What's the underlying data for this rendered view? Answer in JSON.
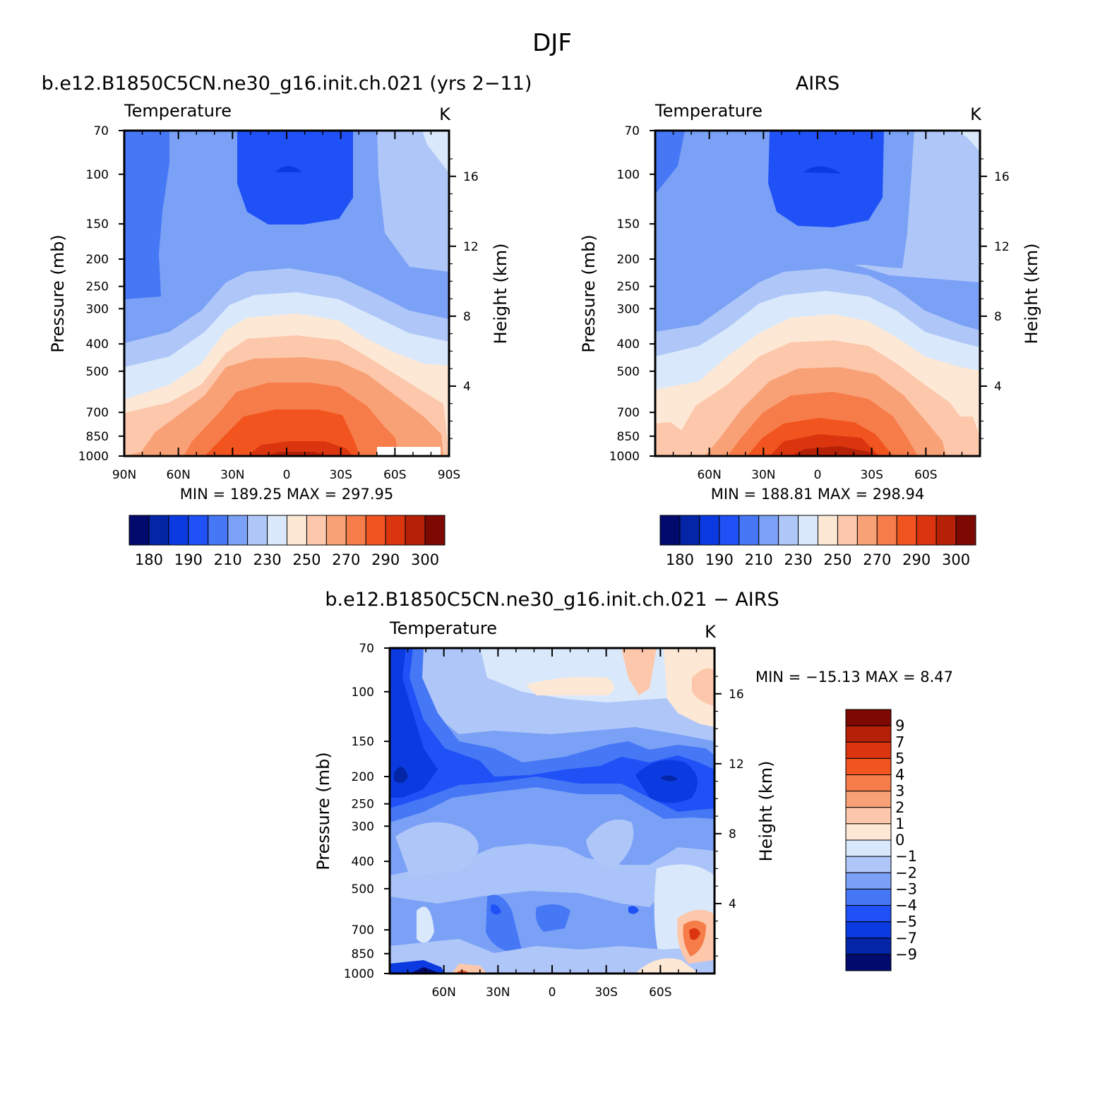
{
  "figure": {
    "title": "DJF"
  },
  "chart_data": [
    {
      "type": "heatmap",
      "title": "b.e12.B1850C5CN.ne30_g16.init.ch.021 (yrs 2-11)",
      "subtitle_left": "Temperature",
      "units": "K",
      "xlabel": "",
      "ylabel": "Pressure (mb)",
      "ylabel_right": "Height (km)",
      "x_ticks": [
        "90N",
        "60N",
        "30N",
        "0",
        "30S",
        "60S",
        "90S"
      ],
      "y_ticks": [
        "70",
        "100",
        "150",
        "200",
        "250",
        "300",
        "400",
        "500",
        "700",
        "850",
        "1000"
      ],
      "right_ticks": [
        "16",
        "12",
        "8",
        "4"
      ],
      "ylim": [
        1000,
        70
      ],
      "y_scale": "log",
      "stats": {
        "min_label": "MIN",
        "min": "189.25",
        "max_label": "MAX",
        "max": "297.95"
      },
      "colorbar": {
        "orientation": "horizontal",
        "labels": [
          "180",
          "190",
          "210",
          "230",
          "250",
          "270",
          "290",
          "300"
        ],
        "colors": [
          "#030a6e",
          "#0425a5",
          "#0b3be0",
          "#1f51f7",
          "#4677f5",
          "#7aa1f6",
          "#afc6f8",
          "#d9e9fb",
          "#fde8d5",
          "#fcc7aa",
          "#f9a176",
          "#f67c49",
          "#f2541f",
          "#db3510",
          "#b52106",
          "#7d0903"
        ]
      }
    },
    {
      "type": "heatmap",
      "title": "AIRS",
      "subtitle_left": "Temperature",
      "units": "K",
      "xlabel": "",
      "ylabel": "Pressure (mb)",
      "ylabel_right": "Height (km)",
      "x_ticks": [
        "60N",
        "30N",
        "0",
        "30S",
        "60S"
      ],
      "y_ticks": [
        "70",
        "100",
        "150",
        "200",
        "250",
        "300",
        "400",
        "500",
        "700",
        "850",
        "1000"
      ],
      "right_ticks": [
        "16",
        "12",
        "8",
        "4"
      ],
      "ylim": [
        1000,
        70
      ],
      "y_scale": "log",
      "stats": {
        "min_label": "MIN",
        "min": "188.81",
        "max_label": "MAX",
        "max": "298.94"
      },
      "colorbar": {
        "orientation": "horizontal",
        "labels": [
          "180",
          "190",
          "210",
          "230",
          "250",
          "270",
          "290",
          "300"
        ],
        "colors": [
          "#030a6e",
          "#0425a5",
          "#0b3be0",
          "#1f51f7",
          "#4677f5",
          "#7aa1f6",
          "#afc6f8",
          "#d9e9fb",
          "#fde8d5",
          "#fcc7aa",
          "#f9a176",
          "#f67c49",
          "#f2541f",
          "#db3510",
          "#b52106",
          "#7d0903"
        ]
      }
    },
    {
      "type": "heatmap",
      "title": "b.e12.B1850C5CN.ne30_g16.init.ch.021 - AIRS",
      "subtitle_left": "Temperature",
      "units": "K",
      "xlabel": "",
      "ylabel": "Pressure (mb)",
      "ylabel_right": "Height (km)",
      "x_ticks": [
        "60N",
        "30N",
        "0",
        "30S",
        "60S"
      ],
      "y_ticks": [
        "70",
        "100",
        "150",
        "200",
        "250",
        "300",
        "400",
        "500",
        "700",
        "850",
        "1000"
      ],
      "right_ticks": [
        "16",
        "12",
        "8",
        "4"
      ],
      "ylim": [
        1000,
        70
      ],
      "y_scale": "log",
      "stats": {
        "min_label": "MIN",
        "min": "-15.13",
        "max_label": "MAX",
        "max": "8.47"
      },
      "colorbar": {
        "orientation": "vertical",
        "labels": [
          "9",
          "7",
          "5",
          "4",
          "3",
          "2",
          "1",
          "0",
          "-1",
          "-2",
          "-3",
          "-4",
          "-5",
          "-7",
          "-9"
        ],
        "colors": [
          "#7d0903",
          "#b52106",
          "#db3510",
          "#f2541f",
          "#f67c49",
          "#f9a176",
          "#fcc7aa",
          "#fde8d5",
          "#d9e9fb",
          "#afc6f8",
          "#7aa1f6",
          "#4677f5",
          "#1f51f7",
          "#0b3be0",
          "#0425a5",
          "#030a6e"
        ]
      }
    }
  ]
}
